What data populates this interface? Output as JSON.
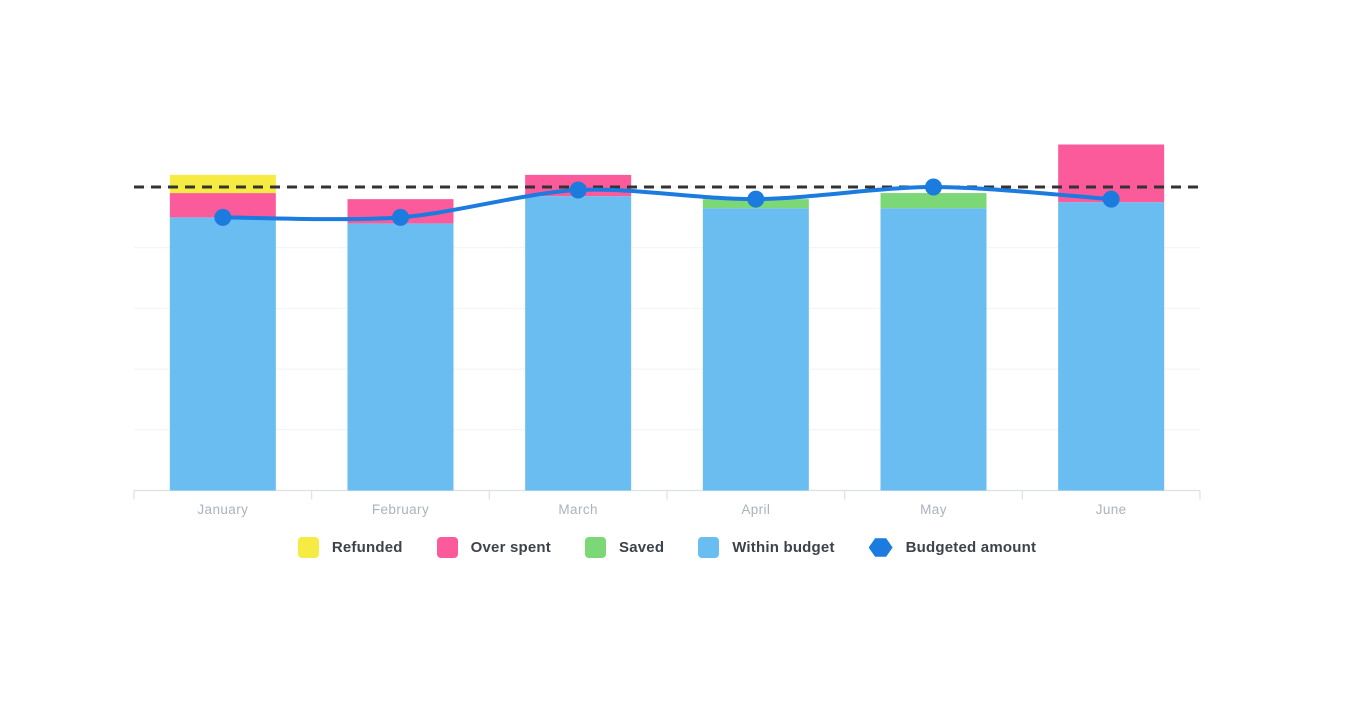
{
  "chart_data": {
    "type": "bar",
    "subtype": "stacked-bars-with-line-overlay",
    "title": "",
    "xlabel": "",
    "ylabel": "",
    "categories": [
      "January",
      "February",
      "March",
      "April",
      "May",
      "June"
    ],
    "series": [
      {
        "name": "Refunded",
        "kind": "bar",
        "color": "#F6EB43",
        "values": [
          6,
          0,
          0,
          0,
          0,
          0
        ]
      },
      {
        "name": "Over spent",
        "kind": "bar",
        "color": "#FB5A9B",
        "values": [
          8,
          8,
          7,
          0,
          0,
          19
        ]
      },
      {
        "name": "Saved",
        "kind": "bar",
        "color": "#7CD877",
        "values": [
          0,
          0,
          0,
          3,
          5,
          0
        ]
      },
      {
        "name": "Within budget",
        "kind": "bar",
        "color": "#6ABDF0",
        "values": [
          90,
          88,
          97,
          93,
          93,
          95
        ]
      },
      {
        "name": "Budgeted amount",
        "kind": "line",
        "color": "#1B7BDF",
        "values": [
          90,
          90,
          99,
          96,
          100,
          96
        ]
      }
    ],
    "stack_order_bottom_to_top": [
      "Within budget",
      "Saved",
      "Over spent",
      "Refunded"
    ],
    "reference_line": {
      "value": 100,
      "style": "dashed",
      "color": "#333333"
    },
    "y_axis": {
      "min": 0,
      "max": 120,
      "tick_step": 20,
      "tick_labels_visible": false
    },
    "gridlines_at": [
      20,
      40,
      60,
      80,
      100
    ],
    "grid": true,
    "legend_position": "bottom",
    "colors": {
      "grid": "#F1F2F5",
      "axis": "#DCE1E6",
      "category_label": "#A9B3BC",
      "legend_text": "#3D434B"
    },
    "note": "Y axis shows no numeric labels; values are relative units estimated from gridlines with the dashed reference line = 100."
  }
}
